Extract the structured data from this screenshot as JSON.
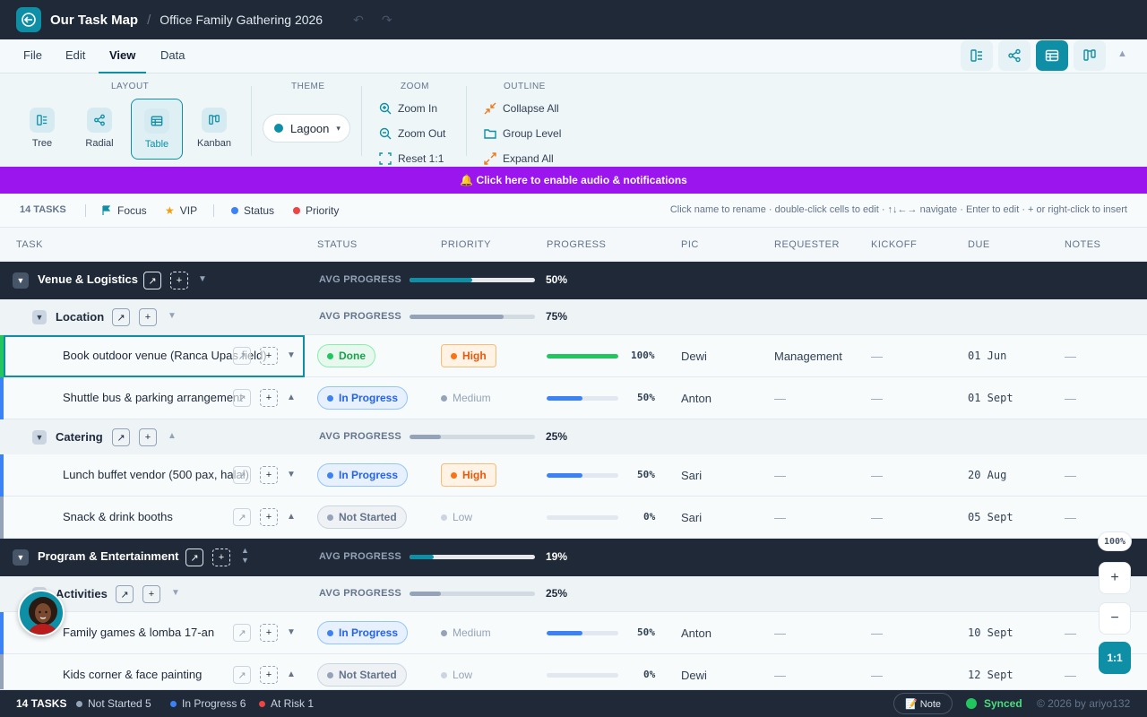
{
  "topbar": {
    "app_title": "Our Task Map",
    "separator": "/",
    "doc_title": "Office Family Gathering 2026",
    "undo_icon": "↶",
    "redo_icon": "↷"
  },
  "menu": {
    "file": "File",
    "edit": "Edit",
    "view": "View",
    "data": "Data"
  },
  "ribbon": {
    "layout_label": "LAYOUT",
    "theme_label": "THEME",
    "zoom_label": "ZOOM",
    "outline_label": "OUTLINE",
    "layouts": [
      "Tree",
      "Radial",
      "Table",
      "Kanban"
    ],
    "theme_value": "Lagoon",
    "theme_caret": "▾",
    "zoom_in": "Zoom In",
    "zoom_out": "Zoom Out",
    "reset": "Reset 1:1",
    "collapse_all": "Collapse All",
    "group_level": "Group Level",
    "expand_all": "Expand All"
  },
  "notice": "🔔 Click here to enable audio & notifications",
  "filters": {
    "count": "14 TASKS",
    "focus": "Focus",
    "vip": "VIP",
    "status": "Status",
    "priority": "Priority",
    "hint": "Click name to rename · double-click cells to edit · ↑↓←→ navigate · Enter to edit · + or right-click to insert"
  },
  "columns": {
    "task": "TASK",
    "status": "STATUS",
    "priority": "PRIORITY",
    "progress": "PROGRESS",
    "pic": "PIC",
    "requester": "REQUESTER",
    "kickoff": "KICKOFF",
    "due": "DUE",
    "notes": "NOTES"
  },
  "rows": {
    "g_venue": {
      "name": "Venue & Logistics",
      "avg": "AVG PROGRESS",
      "pct": "50%",
      "progress": 0.5
    },
    "s_location": {
      "name": "Location",
      "avg": "AVG PROGRESS",
      "pct": "75%",
      "progress": 0.75
    },
    "t1": {
      "name": "Book outdoor venue (Ranca Upas field)",
      "status": "Done",
      "priority": "High",
      "pct": "100%",
      "progress": 1.0,
      "pic": "Dewi",
      "requester": "Management",
      "kickoff": "—",
      "due": "01 Jun",
      "notes": "—"
    },
    "t2": {
      "name": "Shuttle bus & parking arrangement",
      "status": "In Progress",
      "priority": "Medium",
      "pct": "50%",
      "progress": 0.5,
      "pic": "Anton",
      "requester": "—",
      "kickoff": "—",
      "due": "01 Sept",
      "notes": "—"
    },
    "s_catering": {
      "name": "Catering",
      "avg": "AVG PROGRESS",
      "pct": "25%",
      "progress": 0.25
    },
    "t3": {
      "name": "Lunch buffet vendor (500 pax, halal)",
      "status": "In Progress",
      "priority": "High",
      "pct": "50%",
      "progress": 0.5,
      "pic": "Sari",
      "requester": "—",
      "kickoff": "—",
      "due": "20 Aug",
      "notes": "—"
    },
    "t4": {
      "name": "Snack & drink booths",
      "status": "Not Started",
      "priority": "Low",
      "pct": "0%",
      "progress": 0.0,
      "pic": "Sari",
      "requester": "—",
      "kickoff": "—",
      "due": "05 Sept",
      "notes": "—"
    },
    "g_program": {
      "name": "Program & Entertainment",
      "avg": "AVG PROGRESS",
      "pct": "19%",
      "progress": 0.19
    },
    "s_activities": {
      "name": "Activities",
      "avg": "AVG PROGRESS",
      "pct": "25%",
      "progress": 0.25
    },
    "t5": {
      "name": "Family games & lomba 17-an",
      "status": "In Progress",
      "priority": "Medium",
      "pct": "50%",
      "progress": 0.5,
      "pic": "Anton",
      "requester": "—",
      "kickoff": "—",
      "due": "10 Sept",
      "notes": "—"
    },
    "t6": {
      "name": "Kids corner & face painting",
      "status": "Not Started",
      "priority": "Low",
      "pct": "0%",
      "progress": 0.0,
      "pic": "Dewi",
      "requester": "—",
      "kickoff": "—",
      "due": "12 Sept",
      "notes": "—"
    }
  },
  "zoom": {
    "level": "100%",
    "plus": "+",
    "minus": "−",
    "reset": "1:1"
  },
  "footer": {
    "tasks": "14 TASKS",
    "not_started": "Not Started 5",
    "in_progress": "In Progress 6",
    "at_risk": "At Risk 1",
    "note": "📝 Note",
    "synced": "Synced",
    "copyright": "© 2026 by ariyo132"
  },
  "colors": {
    "accent": "#0e8fa6",
    "done": "#22c55e",
    "progress": "#3b82f6",
    "high": "#f97316",
    "risk": "#ef4444",
    "notice": "#9b16ee"
  }
}
